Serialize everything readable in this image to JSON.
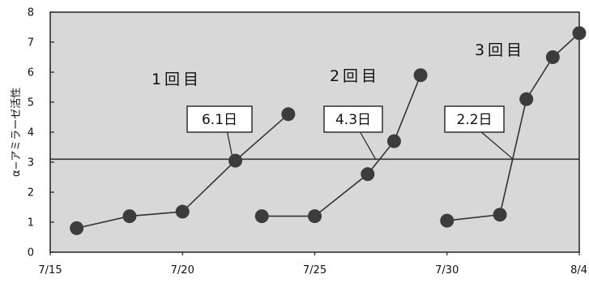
{
  "chart_data": {
    "type": "line",
    "ylabel": "α−アミラーゼ活性",
    "xlabel": "",
    "ylim": [
      0,
      8
    ],
    "yticks": [
      0,
      1,
      2,
      3,
      4,
      5,
      6,
      7,
      8
    ],
    "xlim": [
      "2000-07-15",
      "2000-08-04"
    ],
    "xticks": [
      {
        "label": "7/15",
        "date": "2000-07-15"
      },
      {
        "label": "7/20",
        "date": "2000-07-20"
      },
      {
        "label": "7/25",
        "date": "2000-07-25"
      },
      {
        "label": "7/30",
        "date": "2000-07-30"
      },
      {
        "label": "8/4",
        "date": "2000-08-04"
      }
    ],
    "threshold": 3.1,
    "grid": false,
    "series": [
      {
        "name": "1回目",
        "points": [
          {
            "x": "2000-07-16",
            "y": 0.8
          },
          {
            "x": "2000-07-18",
            "y": 1.2
          },
          {
            "x": "2000-07-20",
            "y": 1.35
          },
          {
            "x": "2000-07-22",
            "y": 3.05
          },
          {
            "x": "2000-07-24",
            "y": 4.6
          }
        ],
        "callout": {
          "label": "6.1日",
          "target": {
            "x": "2000-07-21.9",
            "y": 3.1
          }
        }
      },
      {
        "name": "2回目",
        "points": [
          {
            "x": "2000-07-23",
            "y": 1.2
          },
          {
            "x": "2000-07-25",
            "y": 1.2
          },
          {
            "x": "2000-07-27",
            "y": 2.6
          },
          {
            "x": "2000-07-28",
            "y": 3.7
          },
          {
            "x": "2000-07-29",
            "y": 5.9
          }
        ],
        "callout": {
          "label": "4.3日",
          "target": {
            "x": "2000-07-27.3",
            "y": 3.1
          }
        }
      },
      {
        "name": "3回目",
        "points": [
          {
            "x": "2000-07-30",
            "y": 1.05
          },
          {
            "x": "2000-08-01",
            "y": 1.25
          },
          {
            "x": "2000-08-02",
            "y": 5.1
          },
          {
            "x": "2000-08-03",
            "y": 6.5
          },
          {
            "x": "2000-08-04",
            "y": 7.3
          }
        ],
        "callout": {
          "label": "2.2日",
          "target": {
            "x": "2000-08-01.5",
            "y": 3.1
          }
        }
      }
    ]
  }
}
